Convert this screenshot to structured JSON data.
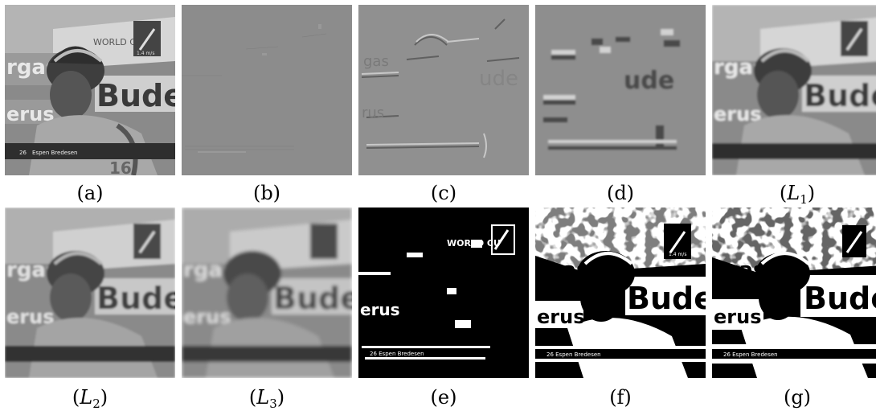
{
  "figure": {
    "captions": {
      "a": "(a)",
      "b": "(b)",
      "c": "(c)",
      "d": "(d)",
      "L1": {
        "pre": "(",
        "var": "L",
        "sub": "1",
        "post": ")"
      },
      "L2": {
        "pre": "(",
        "var": "L",
        "sub": "2",
        "post": ")"
      },
      "L3": {
        "pre": "(",
        "var": "L",
        "sub": "3",
        "post": ")"
      },
      "e": "(e)",
      "f": "(f)",
      "g": "(g)"
    },
    "frame_text": {
      "brand_left": "rgas",
      "brand_big": "Bude",
      "banner": "WORLD CU",
      "sponsor": "erus",
      "speed": "1.4 m/s",
      "bib_number": "26",
      "athlete": "Espen Bredesen",
      "jersey": "16"
    }
  }
}
